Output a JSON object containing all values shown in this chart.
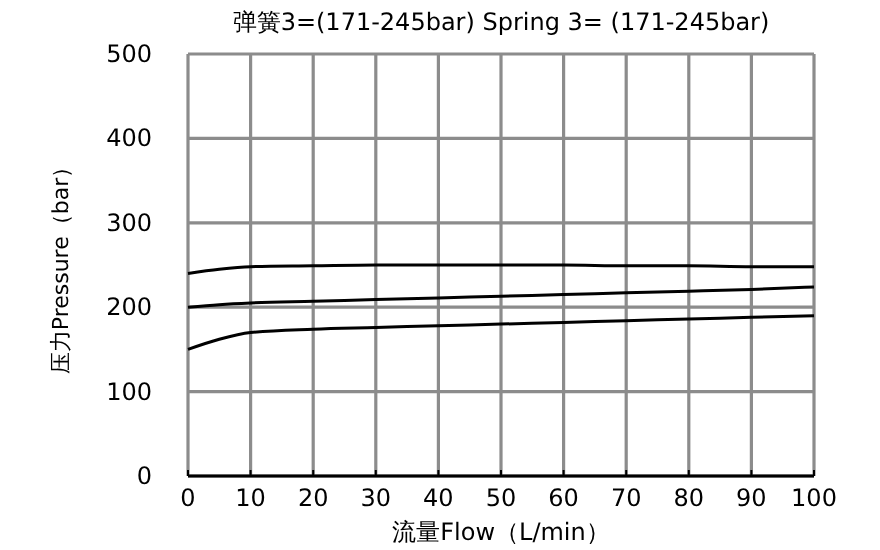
{
  "chart_data": {
    "type": "line",
    "title": "弹簧3=(171-245bar)  Spring 3= (171-245bar)",
    "xlabel": "流量Flow（L/min）",
    "ylabel": "压力Pressure（bar）",
    "x": [
      0,
      5,
      10,
      20,
      30,
      40,
      50,
      60,
      70,
      80,
      90,
      100
    ],
    "series": [
      {
        "color": "#000000",
        "values": [
          240,
          245,
          248,
          249,
          250,
          250,
          250,
          250,
          249,
          249,
          248,
          248
        ]
      },
      {
        "color": "#000000",
        "values": [
          200,
          203,
          205,
          207,
          209,
          211,
          213,
          215,
          217,
          219,
          221,
          224
        ]
      },
      {
        "color": "#000000",
        "values": [
          150,
          162,
          170,
          174,
          176,
          178,
          180,
          182,
          184,
          186,
          188,
          190
        ]
      }
    ],
    "xlim": [
      0,
      100
    ],
    "xticks": [
      0,
      10,
      20,
      30,
      40,
      50,
      60,
      70,
      80,
      90,
      100
    ],
    "ylim": [
      0,
      500
    ],
    "yticks": [
      0,
      100,
      200,
      300,
      400,
      500
    ],
    "grid": true,
    "marker": "none",
    "line_style": "solid"
  }
}
